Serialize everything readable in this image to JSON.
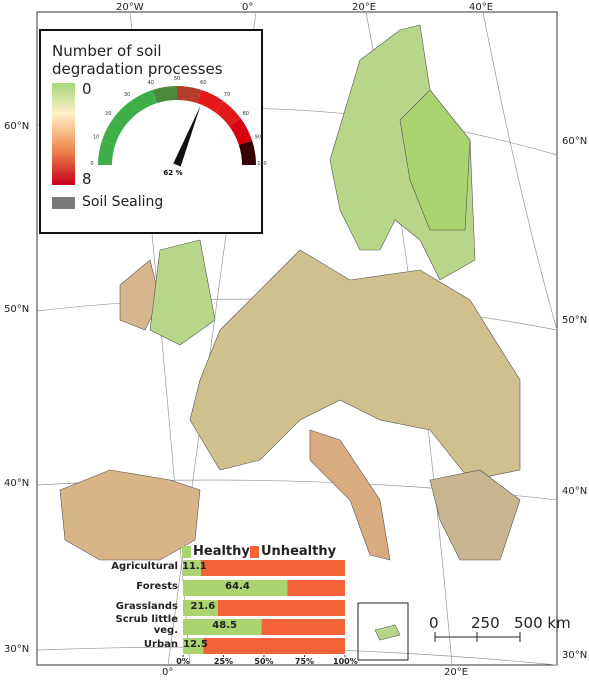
{
  "graticule": {
    "top": [
      "20°W",
      "0°",
      "20°E",
      "40°E"
    ],
    "left": [
      "60°N",
      "50°N",
      "40°N",
      "30°N"
    ],
    "right": [
      "60°N",
      "50°N",
      "40°N",
      "30°N"
    ],
    "bottom": [
      "0°",
      "20°E"
    ]
  },
  "legend": {
    "title_lines": [
      "Number of soil",
      "degradation processes"
    ],
    "scale_min": "0",
    "scale_max": "8",
    "sealing": "Soil Sealing"
  },
  "gauge": {
    "type": "gauge",
    "value": 62,
    "value_label": "62 %",
    "lim": [
      0,
      100
    ],
    "ticks": [
      0,
      10,
      20,
      30,
      40,
      50,
      60,
      70,
      80,
      90,
      100
    ]
  },
  "chart_data": {
    "type": "stacked-bar",
    "categories": [
      "Agricultural",
      "Forests",
      "Grasslands",
      "Scrub little veg.",
      "Urban"
    ],
    "series": [
      {
        "name": "Healthy",
        "color": "#a9d46f",
        "values": [
          11.1,
          64.4,
          21.6,
          48.5,
          12.5
        ]
      },
      {
        "name": "Unhealthy",
        "color": "#f4623a",
        "values": [
          88.9,
          35.6,
          78.4,
          51.5,
          87.5
        ]
      }
    ],
    "xlim": [
      0,
      100
    ],
    "xticks": [
      {
        "value": 0,
        "label": "0%"
      },
      {
        "value": 25,
        "label": "25%"
      },
      {
        "value": 50,
        "label": "50%"
      },
      {
        "value": 75,
        "label": "75%"
      },
      {
        "value": 100,
        "label": "100%"
      }
    ]
  },
  "scalebar": {
    "labels": [
      "0",
      "250",
      "500 km"
    ]
  }
}
